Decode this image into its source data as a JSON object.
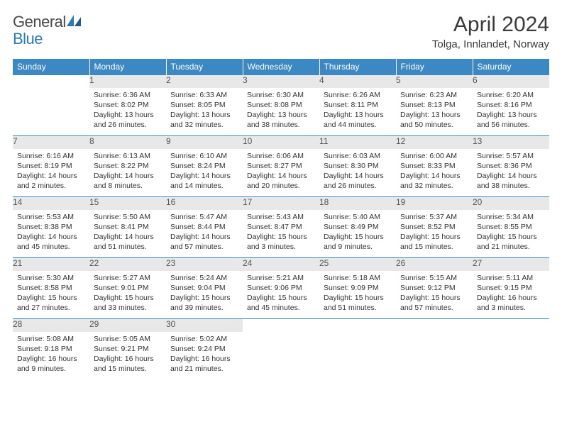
{
  "logo": {
    "text1": "General",
    "text2": "Blue"
  },
  "title": "April 2024",
  "location": "Tolga, Innlandet, Norway",
  "colors": {
    "header_bg": "#3b88c4",
    "header_fg": "#ffffff",
    "daynum_bg": "#e8e8e8",
    "rule": "#3b88c4",
    "text": "#333333",
    "logo_gray": "#4a4a4a",
    "logo_blue": "#2a7ab8"
  },
  "weekdays": [
    "Sunday",
    "Monday",
    "Tuesday",
    "Wednesday",
    "Thursday",
    "Friday",
    "Saturday"
  ],
  "weeks": [
    [
      null,
      {
        "n": "1",
        "sr": "6:36 AM",
        "ss": "8:02 PM",
        "dl": "13 hours and 26 minutes."
      },
      {
        "n": "2",
        "sr": "6:33 AM",
        "ss": "8:05 PM",
        "dl": "13 hours and 32 minutes."
      },
      {
        "n": "3",
        "sr": "6:30 AM",
        "ss": "8:08 PM",
        "dl": "13 hours and 38 minutes."
      },
      {
        "n": "4",
        "sr": "6:26 AM",
        "ss": "8:11 PM",
        "dl": "13 hours and 44 minutes."
      },
      {
        "n": "5",
        "sr": "6:23 AM",
        "ss": "8:13 PM",
        "dl": "13 hours and 50 minutes."
      },
      {
        "n": "6",
        "sr": "6:20 AM",
        "ss": "8:16 PM",
        "dl": "13 hours and 56 minutes."
      }
    ],
    [
      {
        "n": "7",
        "sr": "6:16 AM",
        "ss": "8:19 PM",
        "dl": "14 hours and 2 minutes."
      },
      {
        "n": "8",
        "sr": "6:13 AM",
        "ss": "8:22 PM",
        "dl": "14 hours and 8 minutes."
      },
      {
        "n": "9",
        "sr": "6:10 AM",
        "ss": "8:24 PM",
        "dl": "14 hours and 14 minutes."
      },
      {
        "n": "10",
        "sr": "6:06 AM",
        "ss": "8:27 PM",
        "dl": "14 hours and 20 minutes."
      },
      {
        "n": "11",
        "sr": "6:03 AM",
        "ss": "8:30 PM",
        "dl": "14 hours and 26 minutes."
      },
      {
        "n": "12",
        "sr": "6:00 AM",
        "ss": "8:33 PM",
        "dl": "14 hours and 32 minutes."
      },
      {
        "n": "13",
        "sr": "5:57 AM",
        "ss": "8:36 PM",
        "dl": "14 hours and 38 minutes."
      }
    ],
    [
      {
        "n": "14",
        "sr": "5:53 AM",
        "ss": "8:38 PM",
        "dl": "14 hours and 45 minutes."
      },
      {
        "n": "15",
        "sr": "5:50 AM",
        "ss": "8:41 PM",
        "dl": "14 hours and 51 minutes."
      },
      {
        "n": "16",
        "sr": "5:47 AM",
        "ss": "8:44 PM",
        "dl": "14 hours and 57 minutes."
      },
      {
        "n": "17",
        "sr": "5:43 AM",
        "ss": "8:47 PM",
        "dl": "15 hours and 3 minutes."
      },
      {
        "n": "18",
        "sr": "5:40 AM",
        "ss": "8:49 PM",
        "dl": "15 hours and 9 minutes."
      },
      {
        "n": "19",
        "sr": "5:37 AM",
        "ss": "8:52 PM",
        "dl": "15 hours and 15 minutes."
      },
      {
        "n": "20",
        "sr": "5:34 AM",
        "ss": "8:55 PM",
        "dl": "15 hours and 21 minutes."
      }
    ],
    [
      {
        "n": "21",
        "sr": "5:30 AM",
        "ss": "8:58 PM",
        "dl": "15 hours and 27 minutes."
      },
      {
        "n": "22",
        "sr": "5:27 AM",
        "ss": "9:01 PM",
        "dl": "15 hours and 33 minutes."
      },
      {
        "n": "23",
        "sr": "5:24 AM",
        "ss": "9:04 PM",
        "dl": "15 hours and 39 minutes."
      },
      {
        "n": "24",
        "sr": "5:21 AM",
        "ss": "9:06 PM",
        "dl": "15 hours and 45 minutes."
      },
      {
        "n": "25",
        "sr": "5:18 AM",
        "ss": "9:09 PM",
        "dl": "15 hours and 51 minutes."
      },
      {
        "n": "26",
        "sr": "5:15 AM",
        "ss": "9:12 PM",
        "dl": "15 hours and 57 minutes."
      },
      {
        "n": "27",
        "sr": "5:11 AM",
        "ss": "9:15 PM",
        "dl": "16 hours and 3 minutes."
      }
    ],
    [
      {
        "n": "28",
        "sr": "5:08 AM",
        "ss": "9:18 PM",
        "dl": "16 hours and 9 minutes."
      },
      {
        "n": "29",
        "sr": "5:05 AM",
        "ss": "9:21 PM",
        "dl": "16 hours and 15 minutes."
      },
      {
        "n": "30",
        "sr": "5:02 AM",
        "ss": "9:24 PM",
        "dl": "16 hours and 21 minutes."
      },
      null,
      null,
      null,
      null
    ]
  ],
  "labels": {
    "sunrise": "Sunrise:",
    "sunset": "Sunset:",
    "daylight": "Daylight:"
  }
}
